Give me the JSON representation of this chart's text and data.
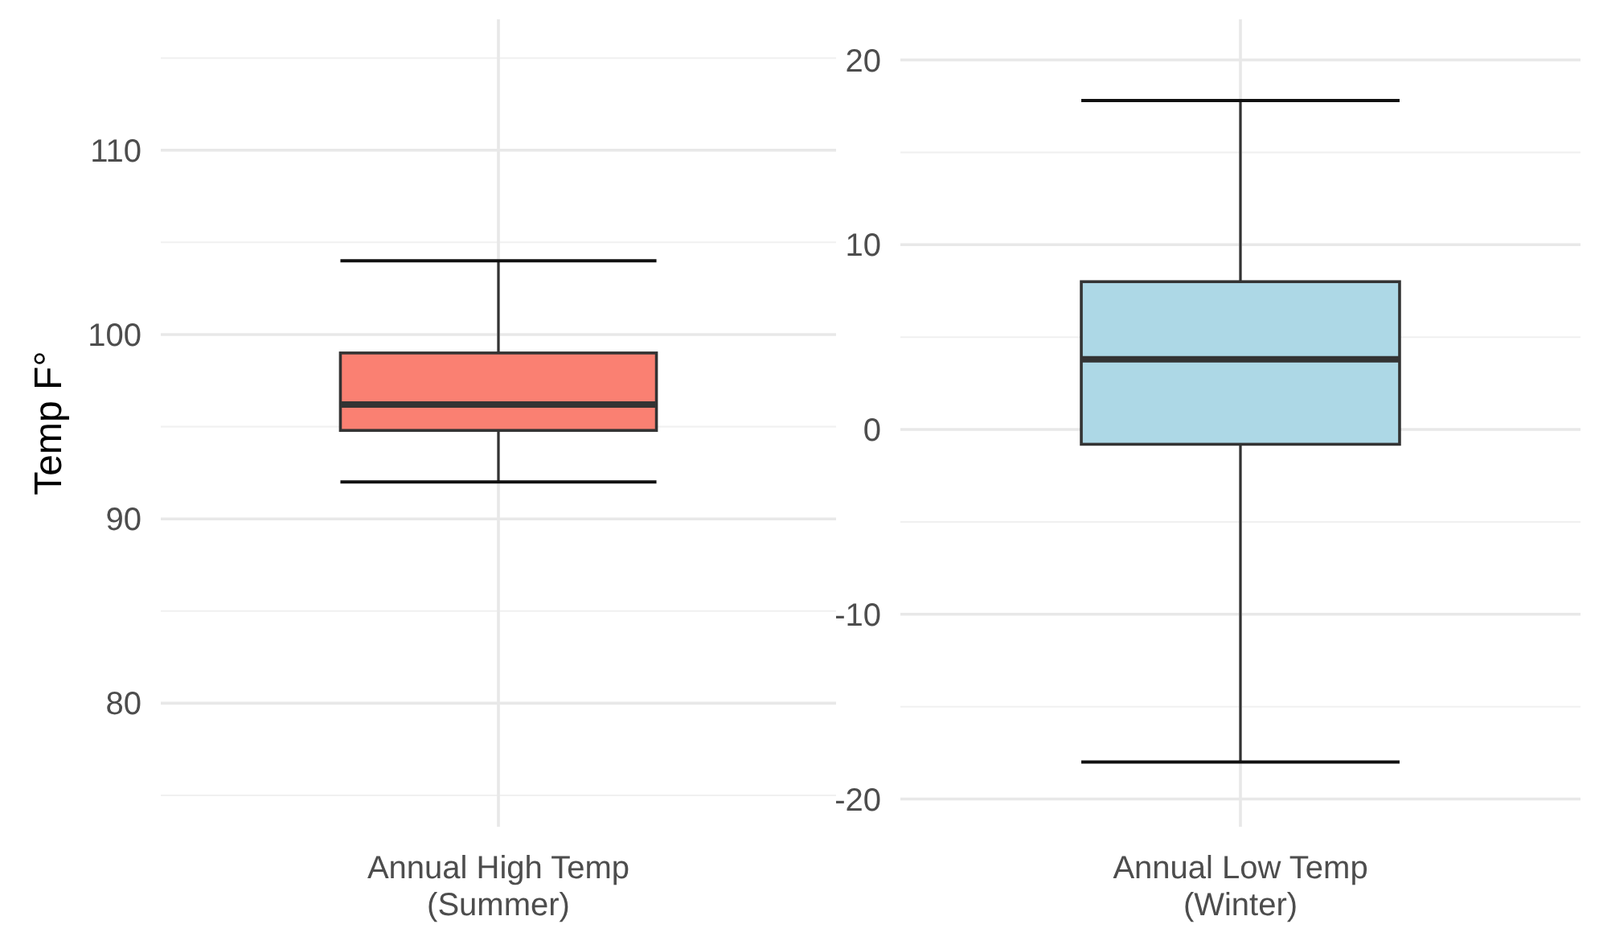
{
  "chart_data": [
    {
      "type": "box",
      "ylabel": "Temp F°",
      "categories": [
        "Annual High Temp\n(Summer)"
      ],
      "color": "#fa8072",
      "boxes": [
        {
          "low": 92,
          "q1": 94.8,
          "median": 96.2,
          "q3": 99,
          "high": 104
        }
      ],
      "ylim": [
        73.3,
        117.1
      ],
      "yticks": [
        80,
        90,
        100,
        110
      ],
      "grid": true
    },
    {
      "type": "box",
      "categories": [
        "Annual Low Temp\n(Winter)"
      ],
      "color": "#add8e6",
      "boxes": [
        {
          "low": -18,
          "q1": -0.8,
          "median": 3.8,
          "q3": 8,
          "high": 17.8
        }
      ],
      "ylim": [
        -21.5,
        22.2
      ],
      "yticks": [
        -20,
        -10,
        0,
        10,
        20
      ],
      "grid": true
    }
  ]
}
